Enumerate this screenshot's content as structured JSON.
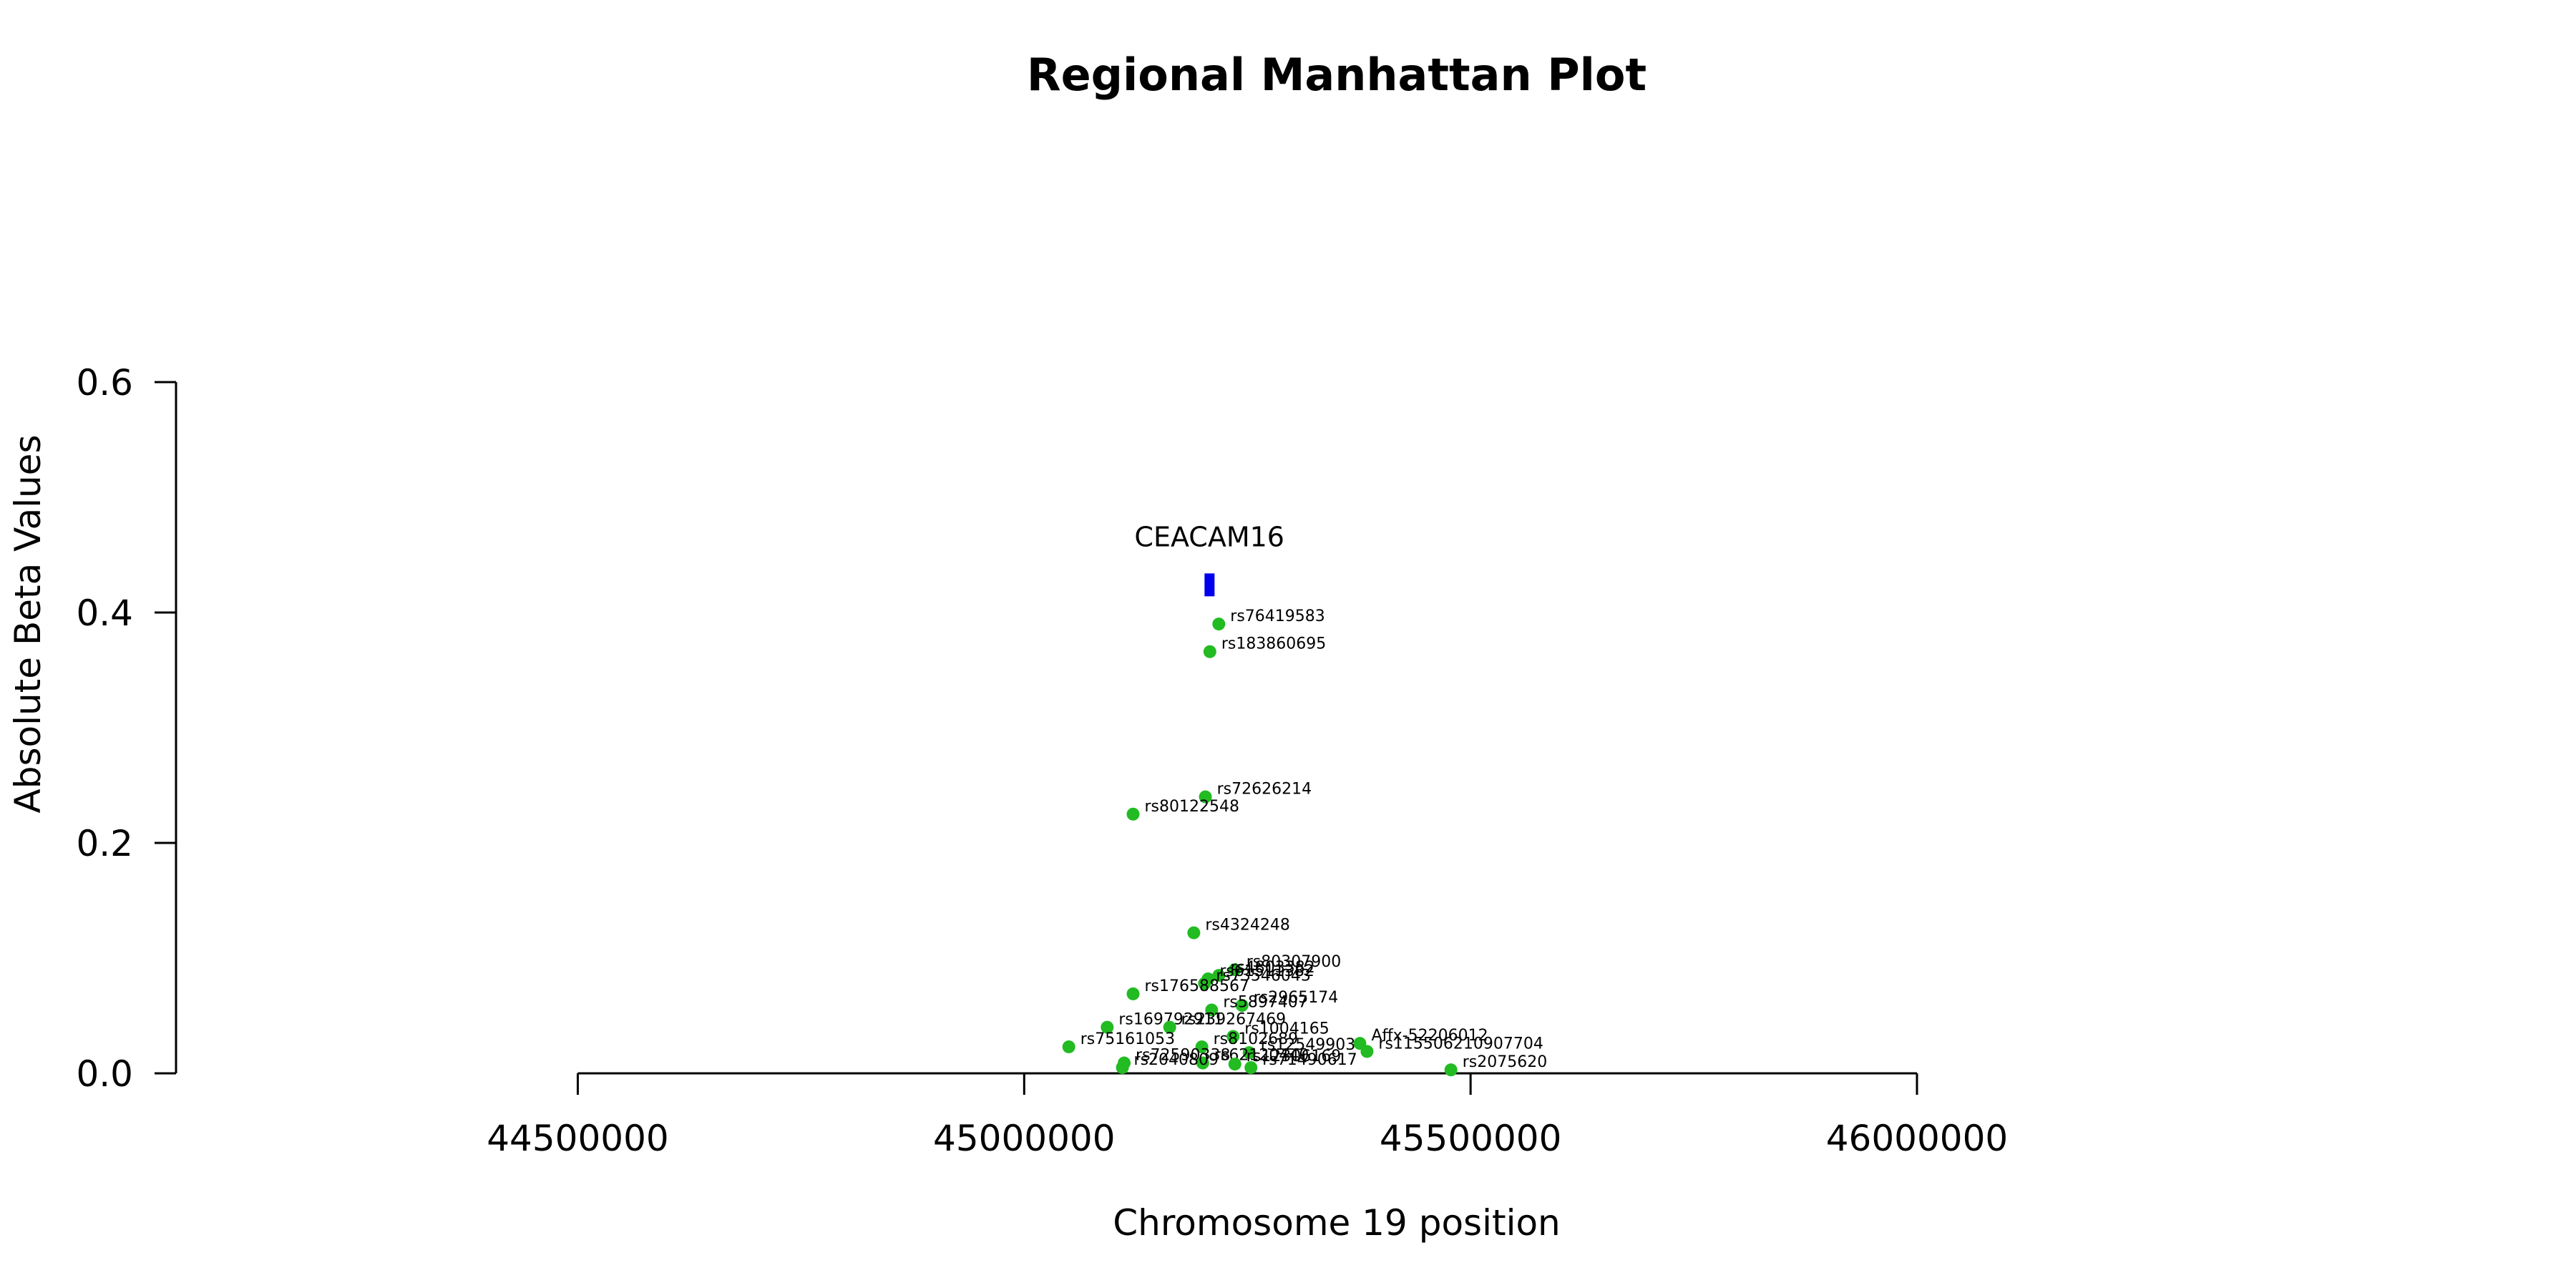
{
  "chart_data": {
    "type": "scatter",
    "title": "Regional Manhattan Plot",
    "xlabel": "Chromosome 19 position",
    "ylabel": "Absolute Beta Values",
    "xlim": [
      44050000,
      46650000
    ],
    "ylim": [
      0,
      0.6
    ],
    "x_ticks": [
      44500000,
      45000000,
      45500000,
      46000000
    ],
    "x_tick_labels": [
      "44500000",
      "45000000",
      "45500000",
      "46000000"
    ],
    "y_ticks": [
      0.0,
      0.2,
      0.4,
      0.6
    ],
    "y_tick_labels": [
      "0.0",
      "0.2",
      "0.4",
      "0.6"
    ],
    "point_color": "#22bb22",
    "gene_color": "#0000ee",
    "genes": [
      {
        "name": "CEACAM16",
        "start": 45202000,
        "end": 45213000,
        "y": 0.424
      }
    ],
    "points": [
      {
        "label": "rs76419583",
        "x": 45218000,
        "y": 0.39
      },
      {
        "label": "rs183860695",
        "x": 45208000,
        "y": 0.366
      },
      {
        "label": "rs72626214",
        "x": 45203000,
        "y": 0.24
      },
      {
        "label": "rs80122548",
        "x": 45122000,
        "y": 0.225
      },
      {
        "label": "rs4324248",
        "x": 45190000,
        "y": 0.122
      },
      {
        "label": "rs80307900",
        "x": 45236000,
        "y": 0.09
      },
      {
        "label": "rs4803382",
        "x": 45218000,
        "y": 0.085
      },
      {
        "label": "rs61511382",
        "x": 45206000,
        "y": 0.082
      },
      {
        "label": "rs73546043",
        "x": 45202000,
        "y": 0.078
      },
      {
        "label": "rs176588567",
        "x": 45122000,
        "y": 0.069
      },
      {
        "label": "rs2965174",
        "x": 45244000,
        "y": 0.059
      },
      {
        "label": "rs5897407",
        "x": 45210000,
        "y": 0.055
      },
      {
        "label": "rs169792911",
        "x": 45093000,
        "y": 0.04
      },
      {
        "label": "rs239267469",
        "x": 45163000,
        "y": 0.04
      },
      {
        "label": "rs1004165",
        "x": 45234000,
        "y": 0.032
      },
      {
        "label": "Affx-52206012",
        "x": 45376000,
        "y": 0.026
      },
      {
        "label": "rs75161053",
        "x": 45050000,
        "y": 0.023
      },
      {
        "label": "rs8102689",
        "x": 45199000,
        "y": 0.023
      },
      {
        "label": "rs115506210907704",
        "x": 45384000,
        "y": 0.019
      },
      {
        "label": "rs12549903",
        "x": 45252000,
        "y": 0.018
      },
      {
        "label": "rs72590338",
        "x": 45112000,
        "y": 0.009
      },
      {
        "label": "rs62120440",
        "x": 45200000,
        "y": 0.009
      },
      {
        "label": "rs12306169",
        "x": 45236000,
        "y": 0.008
      },
      {
        "label": "rs2040809",
        "x": 45110000,
        "y": 0.005
      },
      {
        "label": "rs2075620",
        "x": 45478000,
        "y": 0.003
      },
      {
        "label": "rs71490617",
        "x": 45254000,
        "y": 0.005
      }
    ]
  }
}
